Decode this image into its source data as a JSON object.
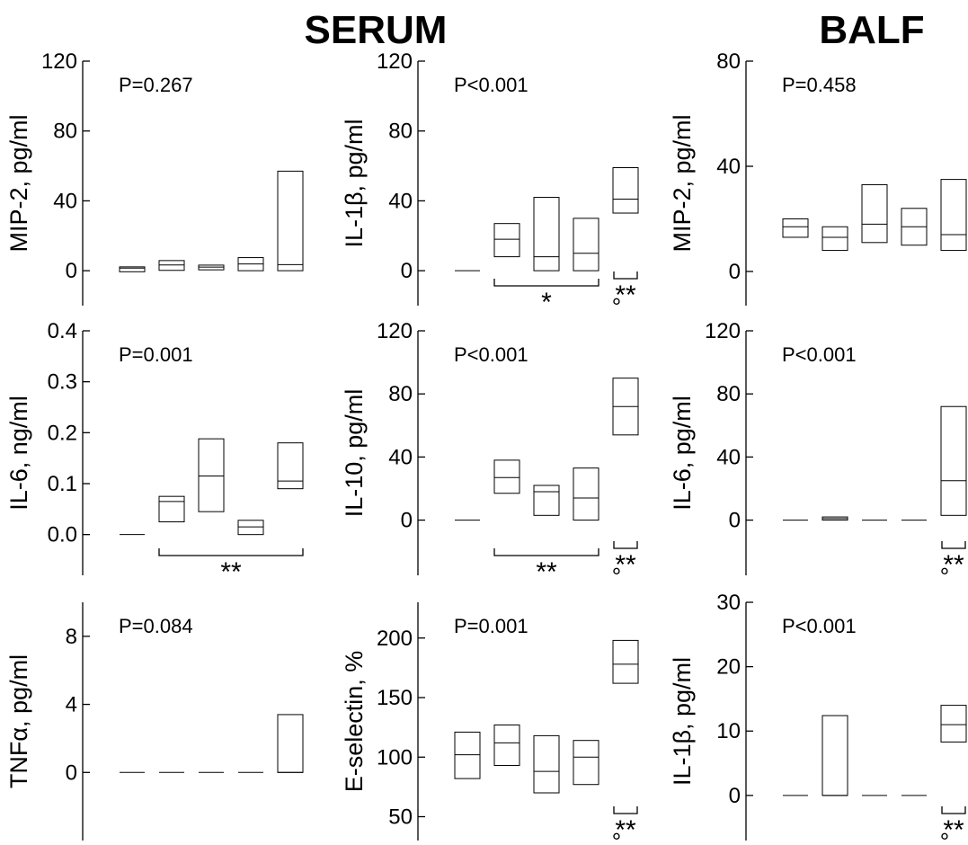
{
  "titles": {
    "serum": "SERUM",
    "balf": "BALF"
  },
  "chart_data": [
    {
      "type": "box",
      "panel": "serum-mip2",
      "ylabel": "MIP-2, pg/ml",
      "ylim": [
        -20,
        120
      ],
      "yticks": [
        0,
        40,
        80,
        120
      ],
      "tick_labels": [
        "0",
        "40",
        "80",
        "120"
      ],
      "pvalue": "P=0.267",
      "boxes": [
        [
          -0.6,
          1.5,
          2.2
        ],
        [
          0.2,
          3.3,
          5.8
        ],
        [
          0.5,
          2.1,
          3.2
        ],
        [
          0,
          3.9,
          7.5
        ],
        [
          0,
          3.5,
          57
        ]
      ],
      "brackets": [],
      "markers": []
    },
    {
      "type": "box",
      "panel": "serum-il1b",
      "ylabel": "IL-1β, pg/ml",
      "ylim": [
        -20,
        120
      ],
      "yticks": [
        0,
        40,
        80,
        120
      ],
      "tick_labels": [
        "0",
        "40",
        "80",
        "120"
      ],
      "pvalue": "P<0.001",
      "boxes": [
        [
          0,
          0,
          0
        ],
        [
          8,
          18,
          27
        ],
        [
          0,
          8,
          42
        ],
        [
          0,
          10,
          30
        ],
        [
          33,
          41,
          59
        ]
      ],
      "brackets": [
        {
          "from": 2,
          "to": 4,
          "label": "*"
        }
      ],
      "markers": [
        {
          "at": 5,
          "stars": "**",
          "circle": "°"
        }
      ]
    },
    {
      "type": "box",
      "panel": "balf-mip2",
      "ylabel": "MIP-2, pg/ml",
      "ylim": [
        -13,
        80
      ],
      "yticks": [
        0,
        40,
        80
      ],
      "tick_labels": [
        "0",
        "40",
        "80"
      ],
      "pvalue": "P=0.458",
      "boxes": [
        [
          13,
          17,
          20
        ],
        [
          8,
          13,
          17
        ],
        [
          11,
          18,
          33
        ],
        [
          10,
          17,
          24
        ],
        [
          8,
          14,
          35
        ]
      ],
      "brackets": [],
      "markers": []
    },
    {
      "type": "box",
      "panel": "serum-il6",
      "ylabel": "IL-6, ng/ml",
      "ylim": [
        -0.08,
        0.4
      ],
      "yticks": [
        0.0,
        0.1,
        0.2,
        0.3,
        0.4
      ],
      "tick_labels": [
        "0.0",
        "0.1",
        "0.2",
        "0.3",
        "0.4"
      ],
      "pvalue": "P=0.001",
      "boxes": [
        [
          0,
          0,
          0
        ],
        [
          0.025,
          0.065,
          0.075
        ],
        [
          0.045,
          0.115,
          0.188
        ],
        [
          0,
          0.015,
          0.028
        ],
        [
          0.09,
          0.105,
          0.18
        ]
      ],
      "brackets": [
        {
          "from": 2,
          "to": 5,
          "label": "**"
        }
      ],
      "markers": []
    },
    {
      "type": "box",
      "panel": "serum-il10",
      "ylabel": "IL-10, pg/ml",
      "ylim": [
        -35,
        120
      ],
      "yticks": [
        0,
        40,
        80,
        120
      ],
      "tick_labels": [
        "0",
        "40",
        "80",
        "120"
      ],
      "pvalue": "P<0.001",
      "boxes": [
        [
          0,
          0,
          0
        ],
        [
          17,
          27,
          38
        ],
        [
          3,
          18,
          22
        ],
        [
          0,
          14,
          33
        ],
        [
          54,
          72,
          90
        ]
      ],
      "brackets": [
        {
          "from": 2,
          "to": 4,
          "label": "**"
        }
      ],
      "markers": [
        {
          "at": 5,
          "stars": "**",
          "circle": "°"
        }
      ]
    },
    {
      "type": "box",
      "panel": "balf-il6",
      "ylabel": "IL-6, pg/ml",
      "ylim": [
        -35,
        120
      ],
      "yticks": [
        0,
        40,
        80,
        120
      ],
      "tick_labels": [
        "0",
        "40",
        "80",
        "120"
      ],
      "pvalue": "P<0.001",
      "boxes": [
        [
          0,
          0,
          0
        ],
        [
          0,
          1,
          2
        ],
        [
          0,
          0,
          0
        ],
        [
          0,
          0,
          0
        ],
        [
          3,
          25,
          72
        ]
      ],
      "brackets": [],
      "markers": [
        {
          "at": 5,
          "stars": "**",
          "circle": "°"
        }
      ]
    },
    {
      "type": "box",
      "panel": "serum-tnfa",
      "ylabel": "TNFα, pg/ml",
      "ylim": [
        -4,
        10
      ],
      "yticks": [
        0,
        4,
        8
      ],
      "tick_labels": [
        "0",
        "4",
        "8"
      ],
      "pvalue": "P=0.084",
      "boxes": [
        [
          0,
          0,
          0
        ],
        [
          0,
          0,
          0
        ],
        [
          0,
          0,
          0
        ],
        [
          0,
          0,
          0
        ],
        [
          0,
          0,
          3.4
        ]
      ],
      "brackets": [],
      "markers": []
    },
    {
      "type": "box",
      "panel": "serum-eselectin",
      "ylabel": "E-selectin, %",
      "ylim": [
        30,
        230
      ],
      "yticks": [
        50,
        100,
        150,
        200
      ],
      "tick_labels": [
        "50",
        "100",
        "150",
        "200"
      ],
      "pvalue": "P=0.001",
      "boxes": [
        [
          82,
          102,
          121
        ],
        [
          93,
          112,
          127
        ],
        [
          70,
          88,
          118
        ],
        [
          77,
          100,
          114
        ],
        [
          162,
          178,
          198
        ]
      ],
      "brackets": [],
      "markers": [
        {
          "at": 5,
          "stars": "**",
          "circle": "°"
        }
      ]
    },
    {
      "type": "box",
      "panel": "balf-il1b",
      "ylabel": "IL-1β, pg/ml",
      "ylim": [
        -7,
        30
      ],
      "yticks": [
        0,
        10,
        20,
        30
      ],
      "tick_labels": [
        "0",
        "10",
        "20",
        "30"
      ],
      "pvalue": "P<0.001",
      "boxes": [
        [
          0,
          0,
          0
        ],
        [
          0,
          0,
          12.4
        ],
        [
          0,
          0,
          0
        ],
        [
          0,
          0,
          0
        ],
        [
          8.3,
          11,
          14
        ]
      ],
      "brackets": [],
      "markers": [
        {
          "at": 5,
          "stars": "**",
          "circle": "°"
        }
      ]
    }
  ]
}
